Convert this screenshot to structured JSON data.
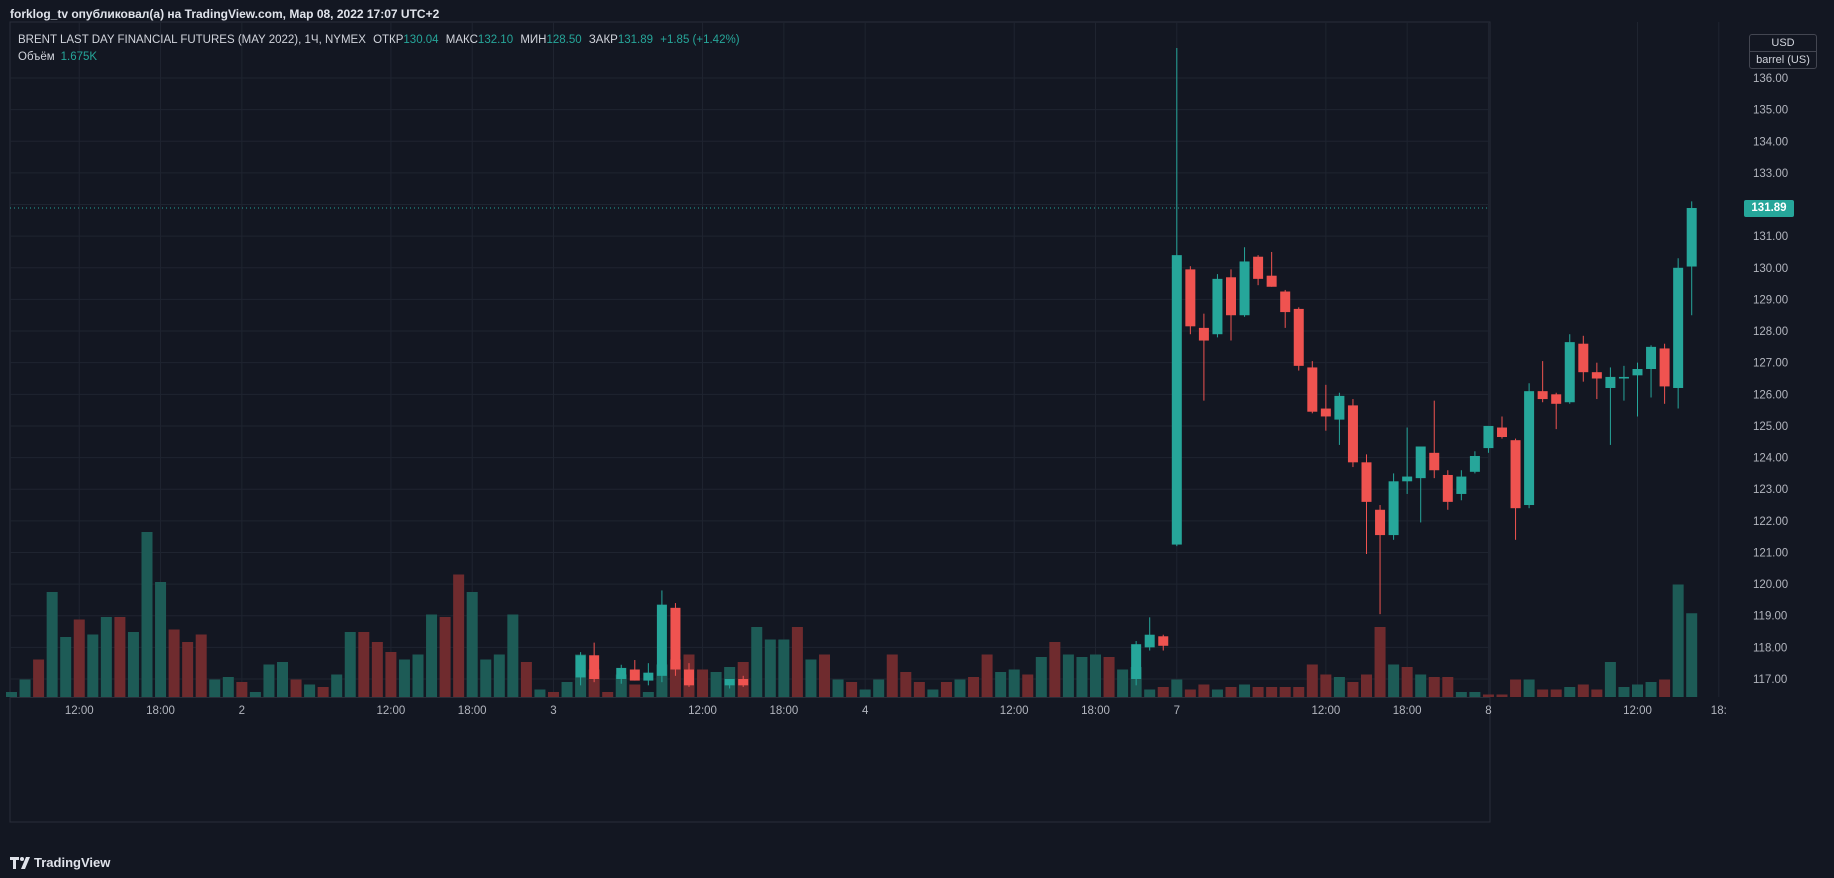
{
  "header": {
    "publish_line": "forklog_tv опубликовал(а) на TradingView.com, Мар 08, 2022 17:07 UTC+2"
  },
  "legend": {
    "symbol": "BRENT LAST DAY FINANCIAL FUTURES (MAY 2022), 1Ч, NYMEX",
    "open_label": "ОТКР",
    "open_value": "130.04",
    "high_label": "МАКС",
    "high_value": "132.10",
    "low_label": "МИН",
    "low_value": "128.50",
    "close_label": "ЗАКР",
    "close_value": "131.89",
    "change": "+1.85 (+1.42%)",
    "volume_label": "Объём",
    "volume_value": "1.675K"
  },
  "price_scale": {
    "currency": "USD",
    "unit": "barrel (US)",
    "last_price_label": "131.89"
  },
  "footer": {
    "brand": "TradingView"
  },
  "colors": {
    "up": "#26a69a",
    "down": "#ef5350",
    "vol_up": "#1d5b56",
    "vol_down": "#6f2b2e",
    "grid": "#1f2430",
    "background": "#131722"
  },
  "chart_data": {
    "type": "candlestick",
    "y_ticks": [
      117,
      118,
      119,
      120,
      121,
      122,
      123,
      124,
      125,
      126,
      127,
      128,
      129,
      130,
      131,
      132,
      133,
      134,
      135,
      136
    ],
    "ylim": [
      116.7,
      137.1
    ],
    "x_labels": [
      {
        "i": 5,
        "text": "12:00"
      },
      {
        "i": 11,
        "text": "18:00"
      },
      {
        "i": 17,
        "text": "2"
      },
      {
        "i": 28,
        "text": "12:00"
      },
      {
        "i": 34,
        "text": "18:00"
      },
      {
        "i": 40,
        "text": "3"
      },
      {
        "i": 51,
        "text": "12:00"
      },
      {
        "i": 57,
        "text": "18:00"
      },
      {
        "i": 63,
        "text": "4"
      },
      {
        "i": 74,
        "text": "12:00"
      },
      {
        "i": 80,
        "text": "18:00"
      },
      {
        "i": 86,
        "text": "7"
      },
      {
        "i": 97,
        "text": "12:00"
      },
      {
        "i": 103,
        "text": "18:00"
      },
      {
        "i": 109,
        "text": "8"
      },
      {
        "i": 120,
        "text": "12:00"
      },
      {
        "i": 126,
        "text": "18:"
      }
    ],
    "candles": [
      {
        "i": 42,
        "o": 117.05,
        "h": 117.85,
        "l": 116.8,
        "c": 117.75
      },
      {
        "i": 43,
        "o": 117.75,
        "h": 118.15,
        "l": 116.9,
        "c": 117.0
      },
      {
        "i": 45,
        "o": 117.0,
        "h": 117.45,
        "l": 116.85,
        "c": 117.35
      },
      {
        "i": 46,
        "o": 117.3,
        "h": 117.6,
        "l": 116.95,
        "c": 116.95
      },
      {
        "i": 47,
        "o": 116.95,
        "h": 117.5,
        "l": 116.8,
        "c": 117.2
      },
      {
        "i": 48,
        "o": 117.1,
        "h": 119.8,
        "l": 116.9,
        "c": 119.35
      },
      {
        "i": 49,
        "o": 119.25,
        "h": 119.4,
        "l": 117.1,
        "c": 117.3
      },
      {
        "i": 50,
        "o": 117.3,
        "h": 117.5,
        "l": 116.75,
        "c": 116.8
      },
      {
        "i": 53,
        "o": 116.8,
        "h": 117.0,
        "l": 116.7,
        "c": 117.0
      },
      {
        "i": 54,
        "o": 117.0,
        "h": 117.1,
        "l": 116.75,
        "c": 116.8
      },
      {
        "i": 83,
        "o": 117.0,
        "h": 118.2,
        "l": 116.8,
        "c": 118.1
      },
      {
        "i": 84,
        "o": 118.0,
        "h": 118.95,
        "l": 117.9,
        "c": 118.4
      },
      {
        "i": 85,
        "o": 118.35,
        "h": 118.4,
        "l": 117.9,
        "c": 118.05
      },
      {
        "i": 86,
        "o": 121.25,
        "h": 136.95,
        "l": 121.2,
        "c": 130.4
      },
      {
        "i": 87,
        "o": 129.95,
        "h": 130.05,
        "l": 127.9,
        "c": 128.15
      },
      {
        "i": 88,
        "o": 128.1,
        "h": 128.55,
        "l": 125.8,
        "c": 127.7
      },
      {
        "i": 89,
        "o": 127.9,
        "h": 129.8,
        "l": 127.8,
        "c": 129.65
      },
      {
        "i": 90,
        "o": 129.7,
        "h": 129.95,
        "l": 127.7,
        "c": 128.5
      },
      {
        "i": 91,
        "o": 128.5,
        "h": 130.65,
        "l": 128.45,
        "c": 130.2
      },
      {
        "i": 92,
        "o": 130.35,
        "h": 130.4,
        "l": 129.45,
        "c": 129.65
      },
      {
        "i": 93,
        "o": 129.75,
        "h": 130.5,
        "l": 129.4,
        "c": 129.4
      },
      {
        "i": 94,
        "o": 129.25,
        "h": 129.3,
        "l": 128.1,
        "c": 128.6
      },
      {
        "i": 95,
        "o": 128.7,
        "h": 128.75,
        "l": 126.75,
        "c": 126.9
      },
      {
        "i": 96,
        "o": 126.85,
        "h": 127.05,
        "l": 125.4,
        "c": 125.45
      },
      {
        "i": 97,
        "o": 125.55,
        "h": 126.3,
        "l": 124.85,
        "c": 125.3
      },
      {
        "i": 98,
        "o": 125.2,
        "h": 126.05,
        "l": 124.4,
        "c": 125.95
      },
      {
        "i": 99,
        "o": 125.65,
        "h": 125.85,
        "l": 123.7,
        "c": 123.85
      },
      {
        "i": 100,
        "o": 123.85,
        "h": 124.1,
        "l": 120.95,
        "c": 122.6
      },
      {
        "i": 101,
        "o": 122.35,
        "h": 122.5,
        "l": 119.05,
        "c": 121.55
      },
      {
        "i": 102,
        "o": 121.55,
        "h": 123.5,
        "l": 121.4,
        "c": 123.25
      },
      {
        "i": 103,
        "o": 123.25,
        "h": 124.95,
        "l": 122.85,
        "c": 123.4
      },
      {
        "i": 104,
        "o": 123.35,
        "h": 124.35,
        "l": 121.95,
        "c": 124.35
      },
      {
        "i": 105,
        "o": 124.15,
        "h": 125.8,
        "l": 123.35,
        "c": 123.6
      },
      {
        "i": 106,
        "o": 123.45,
        "h": 123.6,
        "l": 122.35,
        "c": 122.6
      },
      {
        "i": 107,
        "o": 122.85,
        "h": 123.6,
        "l": 122.65,
        "c": 123.4
      },
      {
        "i": 108,
        "o": 123.55,
        "h": 124.2,
        "l": 123.5,
        "c": 124.05
      },
      {
        "i": 109,
        "o": 124.3,
        "h": 125.0,
        "l": 124.15,
        "c": 125.0
      },
      {
        "i": 110,
        "o": 124.95,
        "h": 125.3,
        "l": 124.6,
        "c": 124.65
      },
      {
        "i": 111,
        "o": 124.55,
        "h": 124.6,
        "l": 121.4,
        "c": 122.4
      },
      {
        "i": 112,
        "o": 122.5,
        "h": 126.35,
        "l": 122.4,
        "c": 126.1
      },
      {
        "i": 113,
        "o": 126.1,
        "h": 127.05,
        "l": 125.75,
        "c": 125.85
      },
      {
        "i": 114,
        "o": 126.0,
        "h": 126.05,
        "l": 124.9,
        "c": 125.7
      },
      {
        "i": 115,
        "o": 125.75,
        "h": 127.9,
        "l": 125.7,
        "c": 127.65
      },
      {
        "i": 116,
        "o": 127.6,
        "h": 127.85,
        "l": 126.4,
        "c": 126.7
      },
      {
        "i": 117,
        "o": 126.7,
        "h": 127.0,
        "l": 125.85,
        "c": 126.5
      },
      {
        "i": 118,
        "o": 126.2,
        "h": 126.85,
        "l": 124.4,
        "c": 126.55
      },
      {
        "i": 119,
        "o": 126.5,
        "h": 126.9,
        "l": 125.8,
        "c": 126.55
      },
      {
        "i": 120,
        "o": 126.6,
        "h": 127.0,
        "l": 125.3,
        "c": 126.8
      },
      {
        "i": 121,
        "o": 126.8,
        "h": 127.55,
        "l": 125.9,
        "c": 127.5
      },
      {
        "i": 122,
        "o": 127.45,
        "h": 127.6,
        "l": 125.7,
        "c": 126.25
      },
      {
        "i": 123,
        "o": 126.2,
        "h": 130.3,
        "l": 125.55,
        "c": 130.0
      },
      {
        "i": 124,
        "o": 130.04,
        "h": 132.1,
        "l": 128.5,
        "c": 131.89
      }
    ],
    "volume_bars": [
      {
        "i": 0,
        "v": 0.1,
        "d": "up"
      },
      {
        "i": 1,
        "v": 0.35,
        "d": "up"
      },
      {
        "i": 2,
        "v": 0.75,
        "d": "down"
      },
      {
        "i": 3,
        "v": 2.1,
        "d": "up"
      },
      {
        "i": 4,
        "v": 1.2,
        "d": "up"
      },
      {
        "i": 5,
        "v": 1.55,
        "d": "down"
      },
      {
        "i": 6,
        "v": 1.25,
        "d": "up"
      },
      {
        "i": 7,
        "v": 1.6,
        "d": "up"
      },
      {
        "i": 8,
        "v": 1.6,
        "d": "down"
      },
      {
        "i": 9,
        "v": 1.3,
        "d": "up"
      },
      {
        "i": 10,
        "v": 3.3,
        "d": "up"
      },
      {
        "i": 11,
        "v": 2.3,
        "d": "up"
      },
      {
        "i": 12,
        "v": 1.35,
        "d": "down"
      },
      {
        "i": 13,
        "v": 1.1,
        "d": "down"
      },
      {
        "i": 14,
        "v": 1.25,
        "d": "down"
      },
      {
        "i": 15,
        "v": 0.35,
        "d": "up"
      },
      {
        "i": 16,
        "v": 0.4,
        "d": "up"
      },
      {
        "i": 17,
        "v": 0.3,
        "d": "down"
      },
      {
        "i": 18,
        "v": 0.1,
        "d": "up"
      },
      {
        "i": 19,
        "v": 0.65,
        "d": "up"
      },
      {
        "i": 20,
        "v": 0.7,
        "d": "up"
      },
      {
        "i": 21,
        "v": 0.35,
        "d": "down"
      },
      {
        "i": 22,
        "v": 0.25,
        "d": "up"
      },
      {
        "i": 23,
        "v": 0.2,
        "d": "down"
      },
      {
        "i": 24,
        "v": 0.45,
        "d": "up"
      },
      {
        "i": 25,
        "v": 1.3,
        "d": "up"
      },
      {
        "i": 26,
        "v": 1.3,
        "d": "down"
      },
      {
        "i": 27,
        "v": 1.1,
        "d": "down"
      },
      {
        "i": 28,
        "v": 0.9,
        "d": "down"
      },
      {
        "i": 29,
        "v": 0.75,
        "d": "up"
      },
      {
        "i": 30,
        "v": 0.85,
        "d": "up"
      },
      {
        "i": 31,
        "v": 1.65,
        "d": "up"
      },
      {
        "i": 32,
        "v": 1.6,
        "d": "down"
      },
      {
        "i": 33,
        "v": 2.45,
        "d": "down"
      },
      {
        "i": 34,
        "v": 2.1,
        "d": "up"
      },
      {
        "i": 35,
        "v": 0.75,
        "d": "up"
      },
      {
        "i": 36,
        "v": 0.85,
        "d": "up"
      },
      {
        "i": 37,
        "v": 1.65,
        "d": "up"
      },
      {
        "i": 38,
        "v": 0.7,
        "d": "down"
      },
      {
        "i": 39,
        "v": 0.15,
        "d": "up"
      },
      {
        "i": 40,
        "v": 0.1,
        "d": "down"
      },
      {
        "i": 41,
        "v": 0.3,
        "d": "up"
      },
      {
        "i": 42,
        "v": 0.85,
        "d": "up"
      },
      {
        "i": 43,
        "v": 0.55,
        "d": "down"
      },
      {
        "i": 44,
        "v": 0.1,
        "d": "down"
      },
      {
        "i": 45,
        "v": 0.45,
        "d": "up"
      },
      {
        "i": 46,
        "v": 0.25,
        "d": "down"
      },
      {
        "i": 47,
        "v": 0.1,
        "d": "up"
      },
      {
        "i": 48,
        "v": 0.65,
        "d": "up"
      },
      {
        "i": 49,
        "v": 0.75,
        "d": "down"
      },
      {
        "i": 50,
        "v": 0.85,
        "d": "down"
      },
      {
        "i": 51,
        "v": 0.55,
        "d": "down"
      },
      {
        "i": 52,
        "v": 0.5,
        "d": "up"
      },
      {
        "i": 53,
        "v": 0.6,
        "d": "up"
      },
      {
        "i": 54,
        "v": 0.7,
        "d": "down"
      },
      {
        "i": 55,
        "v": 1.4,
        "d": "up"
      },
      {
        "i": 56,
        "v": 1.15,
        "d": "up"
      },
      {
        "i": 57,
        "v": 1.15,
        "d": "up"
      },
      {
        "i": 58,
        "v": 1.4,
        "d": "down"
      },
      {
        "i": 59,
        "v": 0.75,
        "d": "up"
      },
      {
        "i": 60,
        "v": 0.85,
        "d": "down"
      },
      {
        "i": 61,
        "v": 0.35,
        "d": "up"
      },
      {
        "i": 62,
        "v": 0.3,
        "d": "down"
      },
      {
        "i": 63,
        "v": 0.15,
        "d": "up"
      },
      {
        "i": 64,
        "v": 0.35,
        "d": "up"
      },
      {
        "i": 65,
        "v": 0.85,
        "d": "down"
      },
      {
        "i": 66,
        "v": 0.5,
        "d": "down"
      },
      {
        "i": 67,
        "v": 0.3,
        "d": "down"
      },
      {
        "i": 68,
        "v": 0.15,
        "d": "up"
      },
      {
        "i": 69,
        "v": 0.3,
        "d": "down"
      },
      {
        "i": 70,
        "v": 0.35,
        "d": "up"
      },
      {
        "i": 71,
        "v": 0.4,
        "d": "down"
      },
      {
        "i": 72,
        "v": 0.85,
        "d": "down"
      },
      {
        "i": 73,
        "v": 0.5,
        "d": "up"
      },
      {
        "i": 74,
        "v": 0.55,
        "d": "up"
      },
      {
        "i": 75,
        "v": 0.45,
        "d": "down"
      },
      {
        "i": 76,
        "v": 0.8,
        "d": "up"
      },
      {
        "i": 77,
        "v": 1.1,
        "d": "down"
      },
      {
        "i": 78,
        "v": 0.85,
        "d": "up"
      },
      {
        "i": 79,
        "v": 0.8,
        "d": "up"
      },
      {
        "i": 80,
        "v": 0.85,
        "d": "up"
      },
      {
        "i": 81,
        "v": 0.8,
        "d": "down"
      },
      {
        "i": 82,
        "v": 0.55,
        "d": "up"
      },
      {
        "i": 83,
        "v": 0.6,
        "d": "up"
      },
      {
        "i": 84,
        "v": 0.15,
        "d": "up"
      },
      {
        "i": 85,
        "v": 0.2,
        "d": "down"
      },
      {
        "i": 86,
        "v": 0.35,
        "d": "up"
      },
      {
        "i": 87,
        "v": 0.15,
        "d": "down"
      },
      {
        "i": 88,
        "v": 0.25,
        "d": "down"
      },
      {
        "i": 89,
        "v": 0.15,
        "d": "up"
      },
      {
        "i": 90,
        "v": 0.2,
        "d": "down"
      },
      {
        "i": 91,
        "v": 0.25,
        "d": "up"
      },
      {
        "i": 92,
        "v": 0.2,
        "d": "down"
      },
      {
        "i": 93,
        "v": 0.2,
        "d": "down"
      },
      {
        "i": 94,
        "v": 0.2,
        "d": "down"
      },
      {
        "i": 95,
        "v": 0.2,
        "d": "down"
      },
      {
        "i": 96,
        "v": 0.65,
        "d": "down"
      },
      {
        "i": 97,
        "v": 0.45,
        "d": "down"
      },
      {
        "i": 98,
        "v": 0.4,
        "d": "up"
      },
      {
        "i": 99,
        "v": 0.3,
        "d": "down"
      },
      {
        "i": 100,
        "v": 0.45,
        "d": "down"
      },
      {
        "i": 101,
        "v": 1.4,
        "d": "down"
      },
      {
        "i": 102,
        "v": 0.65,
        "d": "up"
      },
      {
        "i": 103,
        "v": 0.6,
        "d": "down"
      },
      {
        "i": 104,
        "v": 0.45,
        "d": "up"
      },
      {
        "i": 105,
        "v": 0.4,
        "d": "down"
      },
      {
        "i": 106,
        "v": 0.4,
        "d": "down"
      },
      {
        "i": 107,
        "v": 0.1,
        "d": "up"
      },
      {
        "i": 108,
        "v": 0.1,
        "d": "up"
      },
      {
        "i": 109,
        "v": 0.05,
        "d": "down"
      },
      {
        "i": 110,
        "v": 0.05,
        "d": "down"
      },
      {
        "i": 111,
        "v": 0.35,
        "d": "down"
      },
      {
        "i": 112,
        "v": 0.35,
        "d": "up"
      },
      {
        "i": 113,
        "v": 0.15,
        "d": "down"
      },
      {
        "i": 114,
        "v": 0.15,
        "d": "down"
      },
      {
        "i": 115,
        "v": 0.2,
        "d": "up"
      },
      {
        "i": 116,
        "v": 0.25,
        "d": "down"
      },
      {
        "i": 117,
        "v": 0.15,
        "d": "down"
      },
      {
        "i": 118,
        "v": 0.7,
        "d": "up"
      },
      {
        "i": 119,
        "v": 0.2,
        "d": "up"
      },
      {
        "i": 120,
        "v": 0.25,
        "d": "up"
      },
      {
        "i": 121,
        "v": 0.3,
        "d": "up"
      },
      {
        "i": 122,
        "v": 0.35,
        "d": "down"
      },
      {
        "i": 123,
        "v": 2.25,
        "d": "up"
      },
      {
        "i": 124,
        "v": 1.675,
        "d": "up"
      }
    ]
  }
}
